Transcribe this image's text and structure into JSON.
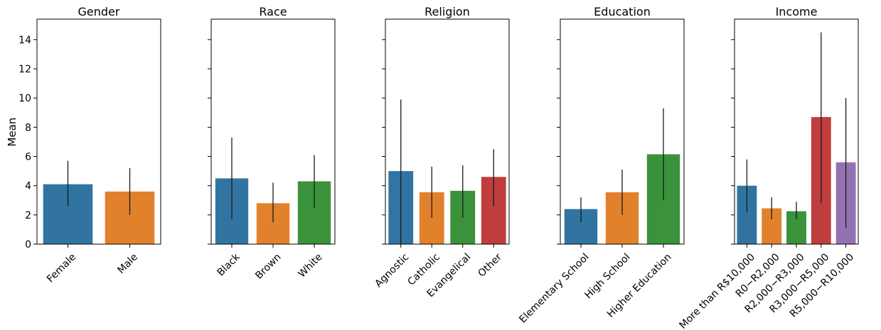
{
  "chart_data": [
    {
      "type": "bar",
      "title": "Gender",
      "ylabel": "Mean",
      "ylim": [
        0,
        15.4
      ],
      "yticks": [
        0,
        2,
        4,
        6,
        8,
        10,
        12,
        14
      ],
      "categories": [
        "Female",
        "Male"
      ],
      "values": [
        4.1,
        3.6
      ],
      "err_low": [
        2.6,
        2.0
      ],
      "err_high": [
        5.7,
        5.2
      ],
      "colors": [
        "#3274a1",
        "#e1812c"
      ]
    },
    {
      "type": "bar",
      "title": "Race",
      "categories": [
        "Black",
        "Brown",
        "White"
      ],
      "values": [
        4.5,
        2.8,
        4.3
      ],
      "err_low": [
        1.7,
        1.5,
        2.5
      ],
      "err_high": [
        7.3,
        4.2,
        6.1
      ],
      "colors": [
        "#3274a1",
        "#e1812c",
        "#3a923a"
      ]
    },
    {
      "type": "bar",
      "title": "Religion",
      "categories": [
        "Agnostic",
        "Catholic",
        "Evangelical",
        "Other"
      ],
      "values": [
        5.0,
        3.55,
        3.65,
        4.6
      ],
      "err_low": [
        0,
        1.8,
        1.8,
        2.6
      ],
      "err_high": [
        9.9,
        5.3,
        5.4,
        6.5
      ],
      "colors": [
        "#3274a1",
        "#e1812c",
        "#3a923a",
        "#c03d3e"
      ]
    },
    {
      "type": "bar",
      "title": "Education",
      "categories": [
        "Elementary School",
        "High School",
        "Higher Education"
      ],
      "values": [
        2.4,
        3.55,
        6.15
      ],
      "err_low": [
        1.5,
        2.0,
        3.0
      ],
      "err_high": [
        3.2,
        5.1,
        9.3
      ],
      "colors": [
        "#3274a1",
        "#e1812c",
        "#3a923a"
      ]
    },
    {
      "type": "bar",
      "title": "Income",
      "categories": [
        "More than R$10,000",
        "R$0 - R$2,000",
        "R$2,000 - R$3,000",
        "R$3,000 - R$5,000",
        "R$5,000 - R$10,000"
      ],
      "tick_labels": [
        "More than R$10,000",
        "R0−R2,000",
        "R2,000−R3,000",
        "R3,000−R5,000",
        "R5,000−R10,000"
      ],
      "values": [
        4.0,
        2.45,
        2.25,
        8.7,
        5.6
      ],
      "err_low": [
        2.2,
        1.7,
        1.7,
        2.8,
        1.1
      ],
      "err_high": [
        5.8,
        3.2,
        2.9,
        14.5,
        10.0
      ],
      "colors": [
        "#3274a1",
        "#e1812c",
        "#3a923a",
        "#c03d3e",
        "#9372b2"
      ]
    }
  ]
}
